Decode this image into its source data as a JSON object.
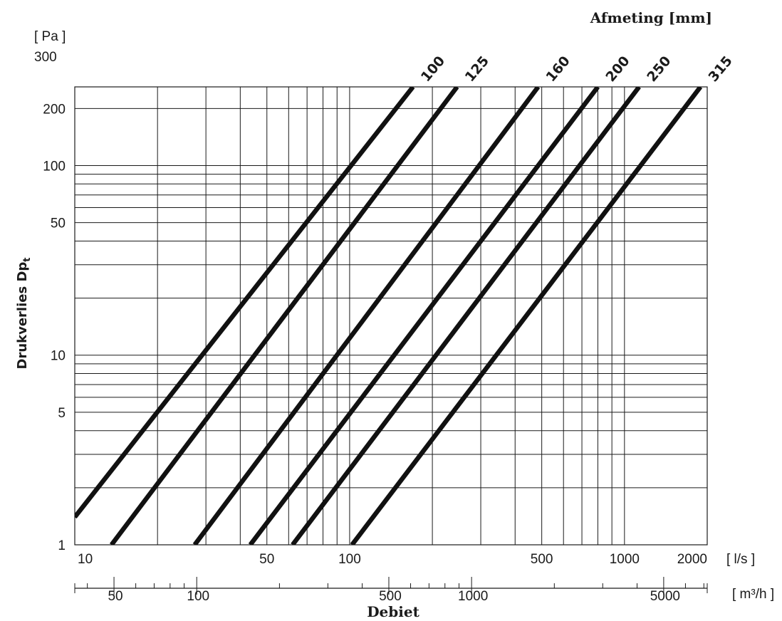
{
  "chart_data": {
    "type": "line",
    "title": "",
    "legend_title": "Afmeting [mm]",
    "x_scale": "log",
    "y_scale": "log",
    "xlabel": "Debiet",
    "ylabel": "Drukverlies Dp",
    "ylabel_subscript": "t",
    "y_unit": "[ Pa ]",
    "x_unit_primary": "[ l/s ]",
    "x_unit_secondary": "[ m³/h ]",
    "xlim": [
      10,
      2000
    ],
    "ylim": [
      1,
      260
    ],
    "y_axis_top_label": "300",
    "grid": true,
    "y_ticks": [
      {
        "value": 200,
        "label": "200"
      },
      {
        "value": 100,
        "label": "100"
      },
      {
        "value": 50,
        "label": "50"
      },
      {
        "value": 10,
        "label": "10"
      },
      {
        "value": 5,
        "label": "5"
      },
      {
        "value": 1,
        "label": "1"
      }
    ],
    "y_gridlines": [
      2,
      3,
      4,
      5,
      6,
      7,
      8,
      9,
      10,
      20,
      30,
      40,
      50,
      60,
      70,
      80,
      90,
      100,
      200
    ],
    "x_ticks": [
      {
        "value": 10,
        "label": "10"
      },
      {
        "value": 50,
        "label": "50"
      },
      {
        "value": 100,
        "label": "100"
      },
      {
        "value": 500,
        "label": "500"
      },
      {
        "value": 1000,
        "label": "1000"
      },
      {
        "value": 2000,
        "label": "2000"
      }
    ],
    "x_gridlines": [
      20,
      30,
      40,
      50,
      60,
      70,
      80,
      90,
      100,
      200,
      300,
      400,
      500,
      600,
      700,
      800,
      900,
      1000
    ],
    "secondary_x_ticks": [
      {
        "value": 50,
        "label": "50"
      },
      {
        "value": 100,
        "label": "100"
      },
      {
        "value": 500,
        "label": "500"
      },
      {
        "value": 1000,
        "label": "1000"
      },
      {
        "value": 5000,
        "label": "5000"
      }
    ],
    "secondary_x_minor": [
      40,
      60,
      70,
      80,
      90,
      200,
      300,
      400,
      600,
      700,
      800,
      900,
      2000,
      3000,
      4000,
      6000,
      7000
    ],
    "series": [
      {
        "name": "100",
        "points": [
          [
            10,
            1.4
          ],
          [
            170,
            260
          ]
        ]
      },
      {
        "name": "125",
        "points": [
          [
            13.6,
            1.0
          ],
          [
            246,
            260
          ]
        ]
      },
      {
        "name": "160",
        "points": [
          [
            27.3,
            1.0
          ],
          [
            485,
            260
          ]
        ]
      },
      {
        "name": "200",
        "points": [
          [
            43.5,
            1.0
          ],
          [
            800,
            260
          ]
        ]
      },
      {
        "name": "250",
        "points": [
          [
            62.0,
            1.0
          ],
          [
            1130,
            260
          ]
        ]
      },
      {
        "name": "315",
        "points": [
          [
            102,
            1.0
          ],
          [
            1890,
            260
          ]
        ]
      }
    ]
  }
}
